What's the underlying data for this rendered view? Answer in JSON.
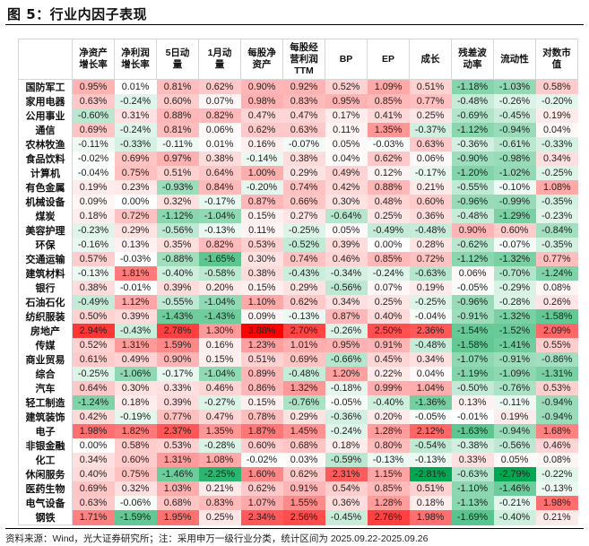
{
  "figure": {
    "title": "图 5：行业内因子表现",
    "source_note": "资料来源：Wind，光大证券研究所；注：采用申万一级行业分类，统计区间为 2025.09.22-2025.09.26"
  },
  "colors": {
    "positive_max": "#ff0000",
    "negative_max": "#00a651",
    "neutral": "#ffffff"
  },
  "table": {
    "corner_header": "",
    "columns": [
      [
        "净资产",
        "增长率"
      ],
      [
        "净利润",
        "增长率"
      ],
      [
        "5日动",
        "量"
      ],
      [
        "1月动",
        "量"
      ],
      [
        "每股净",
        "资产"
      ],
      [
        "每股经",
        "营利润",
        "TTM"
      ],
      [
        "BP"
      ],
      [
        "EP"
      ],
      [
        "成长"
      ],
      [
        "残差波",
        "动率"
      ],
      [
        "流动性"
      ],
      [
        "对数市",
        "值"
      ]
    ],
    "rows": [
      {
        "industry": "国防军工",
        "values": [
          "0.95%",
          "0.01%",
          "0.81%",
          "0.62%",
          "0.90%",
          "0.92%",
          "0.52%",
          "1.09%",
          "0.51%",
          "-1.18%",
          "-1.03%",
          "0.58%"
        ]
      },
      {
        "industry": "家用电器",
        "values": [
          "0.63%",
          "-0.24%",
          "0.60%",
          "0.07%",
          "0.98%",
          "0.83%",
          "0.95%",
          "0.85%",
          "0.77%",
          "-0.48%",
          "-0.26%",
          "-0.20%"
        ]
      },
      {
        "industry": "公用事业",
        "values": [
          "-0.60%",
          "0.31%",
          "0.88%",
          "0.82%",
          "0.47%",
          "0.47%",
          "0.17%",
          "0.41%",
          "0.25%",
          "-0.69%",
          "-0.45%",
          "0.19%"
        ]
      },
      {
        "industry": "通信",
        "values": [
          "0.69%",
          "-0.24%",
          "0.81%",
          "0.06%",
          "0.62%",
          "0.63%",
          "0.11%",
          "1.35%",
          "-0.37%",
          "-1.12%",
          "-0.94%",
          "0.04%"
        ]
      },
      {
        "industry": "农林牧渔",
        "values": [
          "-0.11%",
          "-0.33%",
          "-0.11%",
          "0.01%",
          "0.16%",
          "-0.07%",
          "0.05%",
          "-0.03%",
          "0.63%",
          "-0.36%",
          "-0.61%",
          "-0.33%"
        ]
      },
      {
        "industry": "食品饮料",
        "values": [
          "-0.02%",
          "0.69%",
          "0.97%",
          "0.38%",
          "-0.14%",
          "0.38%",
          "0.04%",
          "0.62%",
          "0.06%",
          "-0.90%",
          "-0.98%",
          "0.34%"
        ]
      },
      {
        "industry": "计算机",
        "values": [
          "-0.04%",
          "0.75%",
          "0.51%",
          "0.64%",
          "1.00%",
          "0.29%",
          "0.49%",
          "0.12%",
          "-0.17%",
          "-1.20%",
          "-1.02%",
          "-0.25%"
        ]
      },
      {
        "industry": "有色金属",
        "values": [
          "0.19%",
          "0.23%",
          "-0.93%",
          "0.84%",
          "-0.20%",
          "0.74%",
          "0.42%",
          "0.88%",
          "0.21%",
          "-0.55%",
          "-0.10%",
          "1.08%"
        ]
      },
      {
        "industry": "机械设备",
        "values": [
          "0.09%",
          "0.00%",
          "0.32%",
          "-0.17%",
          "0.87%",
          "0.66%",
          "0.30%",
          "0.48%",
          "0.60%",
          "-0.96%",
          "-0.99%",
          "-0.35%"
        ]
      },
      {
        "industry": "煤炭",
        "values": [
          "0.18%",
          "0.72%",
          "-1.12%",
          "-1.04%",
          "0.15%",
          "0.27%",
          "-0.64%",
          "0.25%",
          "0.36%",
          "-0.48%",
          "-1.29%",
          "-0.23%"
        ]
      },
      {
        "industry": "美容护理",
        "values": [
          "-0.23%",
          "0.29%",
          "-0.56%",
          "-0.13%",
          "0.11%",
          "-0.25%",
          "0.05%",
          "-0.49%",
          "-0.48%",
          "0.90%",
          "0.60%",
          "-0.84%"
        ]
      },
      {
        "industry": "环保",
        "values": [
          "-0.16%",
          "0.13%",
          "0.35%",
          "0.82%",
          "0.53%",
          "-0.52%",
          "0.39%",
          "0.00%",
          "0.28%",
          "-0.62%",
          "-0.07%",
          "-0.35%"
        ]
      },
      {
        "industry": "交通运输",
        "values": [
          "0.57%",
          "-0.03%",
          "-0.88%",
          "-1.65%",
          "0.30%",
          "0.74%",
          "0.46%",
          "0.85%",
          "0.72%",
          "-1.12%",
          "-1.32%",
          "0.77%"
        ]
      },
      {
        "industry": "建筑材料",
        "values": [
          "-0.13%",
          "1.81%",
          "-0.40%",
          "-0.58%",
          "0.38%",
          "-0.43%",
          "-0.34%",
          "-0.24%",
          "-0.63%",
          "0.06%",
          "-0.70%",
          "-1.24%"
        ]
      },
      {
        "industry": "银行",
        "values": [
          "0.38%",
          "-0.01%",
          "0.39%",
          "0.20%",
          "0.15%",
          "0.29%",
          "-0.56%",
          "0.07%",
          "0.19%",
          "-0.05%",
          "-0.29%",
          "0.08%"
        ]
      },
      {
        "industry": "石油石化",
        "values": [
          "-0.49%",
          "1.12%",
          "-0.55%",
          "-1.04%",
          "1.10%",
          "0.62%",
          "0.34%",
          "0.25%",
          "-0.25%",
          "-0.96%",
          "-0.28%",
          "0.26%"
        ]
      },
      {
        "industry": "纺织服装",
        "values": [
          "0.50%",
          "0.39%",
          "-1.43%",
          "-1.43%",
          "0.09%",
          "-0.13%",
          "0.87%",
          "0.40%",
          "-0.04%",
          "-0.91%",
          "-1.32%",
          "-1.58%"
        ]
      },
      {
        "industry": "房地产",
        "values": [
          "2.94%",
          "-0.43%",
          "2.78%",
          "1.30%",
          "3.88%",
          "2.70%",
          "-0.26%",
          "2.50%",
          "2.36%",
          "-1.54%",
          "-1.52%",
          "2.09%"
        ]
      },
      {
        "industry": "传媒",
        "values": [
          "0.52%",
          "1.31%",
          "1.59%",
          "0.16%",
          "1.23%",
          "1.01%",
          "0.95%",
          "0.91%",
          "-0.48%",
          "-1.58%",
          "-1.41%",
          "0.55%"
        ]
      },
      {
        "industry": "商业贸易",
        "values": [
          "0.61%",
          "0.49%",
          "0.90%",
          "0.15%",
          "0.51%",
          "0.69%",
          "-0.66%",
          "0.45%",
          "0.34%",
          "-1.07%",
          "-0.91%",
          "-0.86%"
        ]
      },
      {
        "industry": "综合",
        "values": [
          "-0.25%",
          "-1.06%",
          "-0.17%",
          "-1.04%",
          "0.89%",
          "-0.48%",
          "1.20%",
          "0.22%",
          "0.04%",
          "-1.19%",
          "-1.09%",
          "-1.31%"
        ]
      },
      {
        "industry": "汽车",
        "values": [
          "0.64%",
          "0.30%",
          "0.33%",
          "0.46%",
          "0.86%",
          "1.32%",
          "-0.18%",
          "0.99%",
          "1.04%",
          "-0.50%",
          "-0.76%",
          "0.53%"
        ]
      },
      {
        "industry": "轻工制造",
        "values": [
          "-1.24%",
          "0.18%",
          "0.39%",
          "-0.27%",
          "0.15%",
          "-0.76%",
          "-0.05%",
          "-0.40%",
          "-1.36%",
          "0.13%",
          "-0.11%",
          "-0.94%"
        ]
      },
      {
        "industry": "建筑装饰",
        "values": [
          "0.42%",
          "-0.19%",
          "0.77%",
          "0.47%",
          "0.78%",
          "0.29%",
          "-0.36%",
          "0.20%",
          "-0.05%",
          "-0.01%",
          "0.19%",
          "-0.94%"
        ]
      },
      {
        "industry": "电子",
        "values": [
          "1.98%",
          "1.82%",
          "2.37%",
          "1.35%",
          "1.87%",
          "1.45%",
          "-0.24%",
          "1.28%",
          "2.12%",
          "-1.63%",
          "-0.94%",
          "1.68%"
        ]
      },
      {
        "industry": "非银金融",
        "values": [
          "0.00%",
          "0.58%",
          "0.53%",
          "-0.28%",
          "0.60%",
          "0.68%",
          "0.18%",
          "0.80%",
          "-0.54%",
          "-0.38%",
          "-0.56%",
          "0.46%"
        ]
      },
      {
        "industry": "化工",
        "values": [
          "0.34%",
          "0.60%",
          "1.31%",
          "1.08%",
          "-0.02%",
          "0.03%",
          "-0.59%",
          "-0.13%",
          "-0.13%",
          "0.33%",
          "0.05%",
          "0.08%"
        ]
      },
      {
        "industry": "休闲服务",
        "values": [
          "0.40%",
          "0.75%",
          "-1.46%",
          "-2.25%",
          "1.60%",
          "0.62%",
          "2.31%",
          "1.15%",
          "-2.81%",
          "-0.63%",
          "-2.79%",
          "-0.22%"
        ]
      },
      {
        "industry": "医药生物",
        "values": [
          "0.69%",
          "0.32%",
          "1.03%",
          "0.21%",
          "0.62%",
          "0.91%",
          "0.54%",
          "0.85%",
          "0.51%",
          "-1.10%",
          "-1.46%",
          "-0.13%"
        ]
      },
      {
        "industry": "电气设备",
        "values": [
          "0.63%",
          "-0.06%",
          "0.68%",
          "0.83%",
          "1.07%",
          "1.55%",
          "0.36%",
          "1.28%",
          "0.18%",
          "-1.13%",
          "-0.21%",
          "1.98%"
        ]
      },
      {
        "industry": "钢铁",
        "values": [
          "1.71%",
          "-1.59%",
          "1.95%",
          "0.25%",
          "2.34%",
          "2.56%",
          "-0.45%",
          "2.76%",
          "1.98%",
          "-1.69%",
          "-0.40%",
          "0.21%"
        ]
      }
    ]
  }
}
